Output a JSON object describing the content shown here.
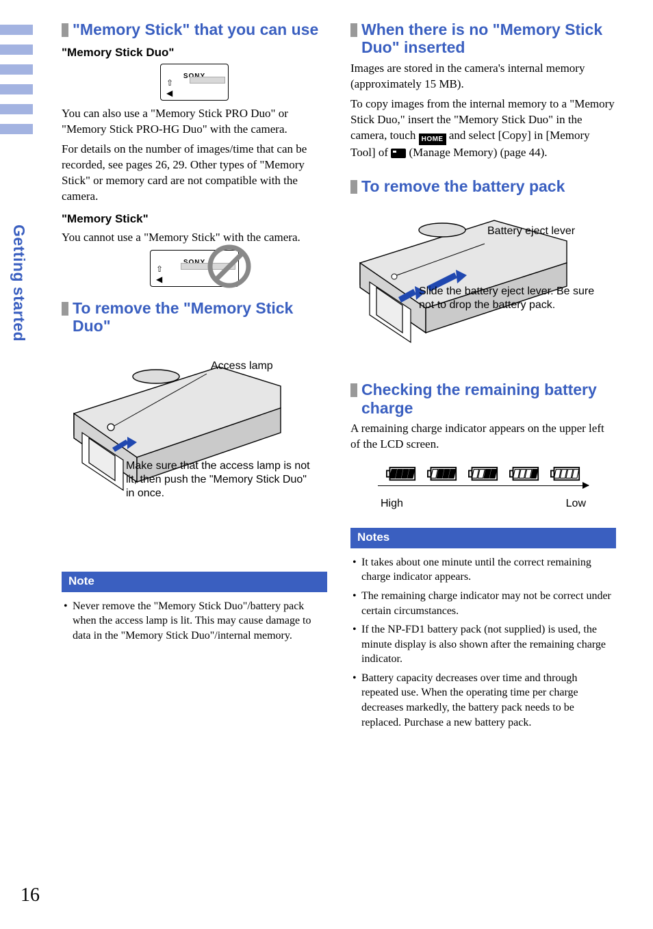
{
  "page_number": "16",
  "side_label": "Getting started",
  "side_tab_color": "#a3b3e1",
  "heading_color": "#3a5fc0",
  "left": {
    "h_memstick_use": "\"Memory Stick\" that you can use",
    "h3_duo": "\"Memory Stick Duo\"",
    "memstick_brand": "SONY",
    "p_duo": "You can also use a \"Memory Stick PRO Duo\" or \"Memory Stick PRO-HG Duo\" with the camera.",
    "p_details": "For details on the number of images/time that can be recorded, see pages 26, 29. Other types of \"Memory Stick\" or memory card are not compatible with the camera.",
    "h3_ms": "\"Memory Stick\"",
    "p_ms": "You cannot use a \"Memory Stick\" with the camera.",
    "h_remove_ms": "To remove the \"Memory Stick Duo\"",
    "annot_access": "Access lamp",
    "annot_push": "Make sure that the access lamp is not lit, then push the \"Memory Stick Duo\" in once.",
    "note_label": "Note",
    "note_item": "Never remove the \"Memory Stick Duo\"/battery pack when the access lamp is lit. This may cause damage to data in the \"Memory Stick Duo\"/internal memory."
  },
  "right": {
    "h_no_ms": "When there is no \"Memory Stick Duo\" inserted",
    "p_internal": "Images are stored in the camera's internal memory (approximately 15 MB).",
    "p_copy_a": "To copy images from the internal memory to a \"Memory Stick Duo,\" insert the \"Memory Stick Duo\" in the camera, touch ",
    "home_label": "HOME",
    "p_copy_b": " and select [Copy] in [Memory Tool] of ",
    "p_copy_c": " (Manage Memory) (page 44).",
    "h_remove_batt": "To remove the battery pack",
    "annot_lever": "Battery eject lever",
    "annot_slide": "Slide the battery eject lever. Be sure not to drop the battery pack.",
    "h_check": "Checking the remaining battery charge",
    "p_indicator": "A remaining charge indicator appears on the upper left of the LCD screen.",
    "high": "High",
    "low": "Low",
    "notes_label": "Notes",
    "notes": [
      "It takes about one minute until the correct remaining charge indicator appears.",
      "The remaining charge indicator may not be correct under certain circumstances.",
      "If the NP-FD1 battery pack (not supplied) is used, the minute display is also shown after the remaining charge indicator.",
      "Battery capacity decreases over time and through repeated use. When the operating time per charge decreases markedly, the battery pack needs to be replaced. Purchase a new battery pack."
    ],
    "battery_levels": [
      4,
      3,
      2,
      1,
      0
    ]
  }
}
